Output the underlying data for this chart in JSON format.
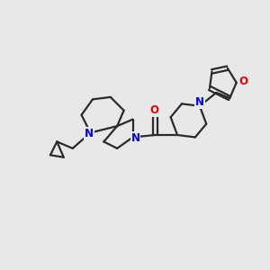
{
  "bg_color": "#e8e8e8",
  "bond_color": "#2a2a2a",
  "N_color": "#0000ee",
  "O_color": "#ee0000",
  "bond_width": 1.6,
  "figsize": [
    3.0,
    3.0
  ],
  "dpi": 100,
  "xlim": [
    0,
    12
  ],
  "ylim": [
    0,
    10
  ]
}
